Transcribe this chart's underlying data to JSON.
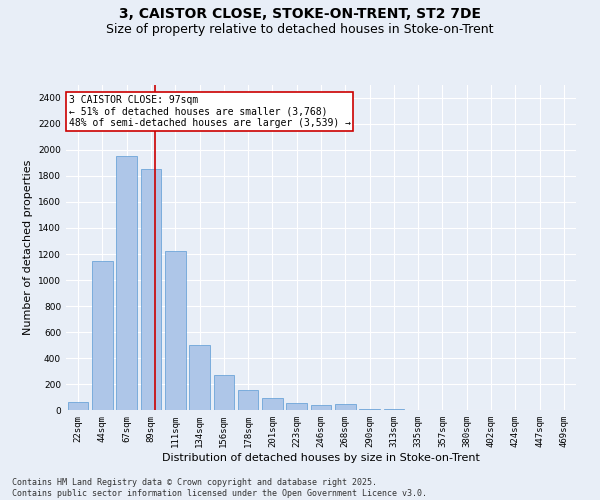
{
  "title": "3, CAISTOR CLOSE, STOKE-ON-TRENT, ST2 7DE",
  "subtitle": "Size of property relative to detached houses in Stoke-on-Trent",
  "xlabel": "Distribution of detached houses by size in Stoke-on-Trent",
  "ylabel": "Number of detached properties",
  "categories": [
    "22sqm",
    "44sqm",
    "67sqm",
    "89sqm",
    "111sqm",
    "134sqm",
    "156sqm",
    "178sqm",
    "201sqm",
    "223sqm",
    "246sqm",
    "268sqm",
    "290sqm",
    "313sqm",
    "335sqm",
    "357sqm",
    "380sqm",
    "402sqm",
    "424sqm",
    "447sqm",
    "469sqm"
  ],
  "values": [
    60,
    1150,
    1950,
    1850,
    1220,
    500,
    270,
    155,
    90,
    55,
    35,
    50,
    10,
    5,
    2,
    1,
    1,
    0,
    0,
    1,
    0
  ],
  "bar_color": "#aec6e8",
  "bar_edge_color": "#5b9bd5",
  "background_color": "#e8eef7",
  "grid_color": "#ffffff",
  "annotation_text": "3 CAISTOR CLOSE: 97sqm\n← 51% of detached houses are smaller (3,768)\n48% of semi-detached houses are larger (3,539) →",
  "annotation_box_color": "#ffffff",
  "annotation_border_color": "#cc0000",
  "vline_x_index": 3.18,
  "vline_color": "#cc0000",
  "ylim": [
    0,
    2500
  ],
  "yticks": [
    0,
    200,
    400,
    600,
    800,
    1000,
    1200,
    1400,
    1600,
    1800,
    2000,
    2200,
    2400
  ],
  "footer_text": "Contains HM Land Registry data © Crown copyright and database right 2025.\nContains public sector information licensed under the Open Government Licence v3.0.",
  "title_fontsize": 10,
  "subtitle_fontsize": 9,
  "xlabel_fontsize": 8,
  "ylabel_fontsize": 8,
  "tick_fontsize": 6.5,
  "annotation_fontsize": 7,
  "footer_fontsize": 6
}
